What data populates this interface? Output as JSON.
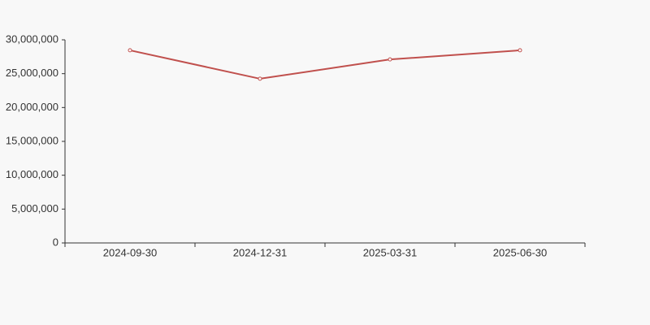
{
  "chart_data": {
    "type": "line",
    "categories": [
      "2024-09-30",
      "2024-12-31",
      "2025-03-31",
      "2025-06-30"
    ],
    "series": [
      {
        "name": "value",
        "color": "#c0504d",
        "values": [
          28450000,
          24250000,
          27100000,
          28450000
        ]
      }
    ],
    "ylim": [
      0,
      30000000
    ],
    "yticks": [
      0,
      {
        "value": 5000000,
        "label": "5,000,000"
      },
      {
        "value": 10000000,
        "label": "10,000,000"
      },
      {
        "value": 15000000,
        "label": "15,000,000"
      },
      {
        "value": 20000000,
        "label": "20,000,000"
      },
      {
        "value": 25000000,
        "label": "25,000,000"
      },
      {
        "value": 30000000,
        "label": "30,000,000"
      }
    ],
    "grid": false
  }
}
